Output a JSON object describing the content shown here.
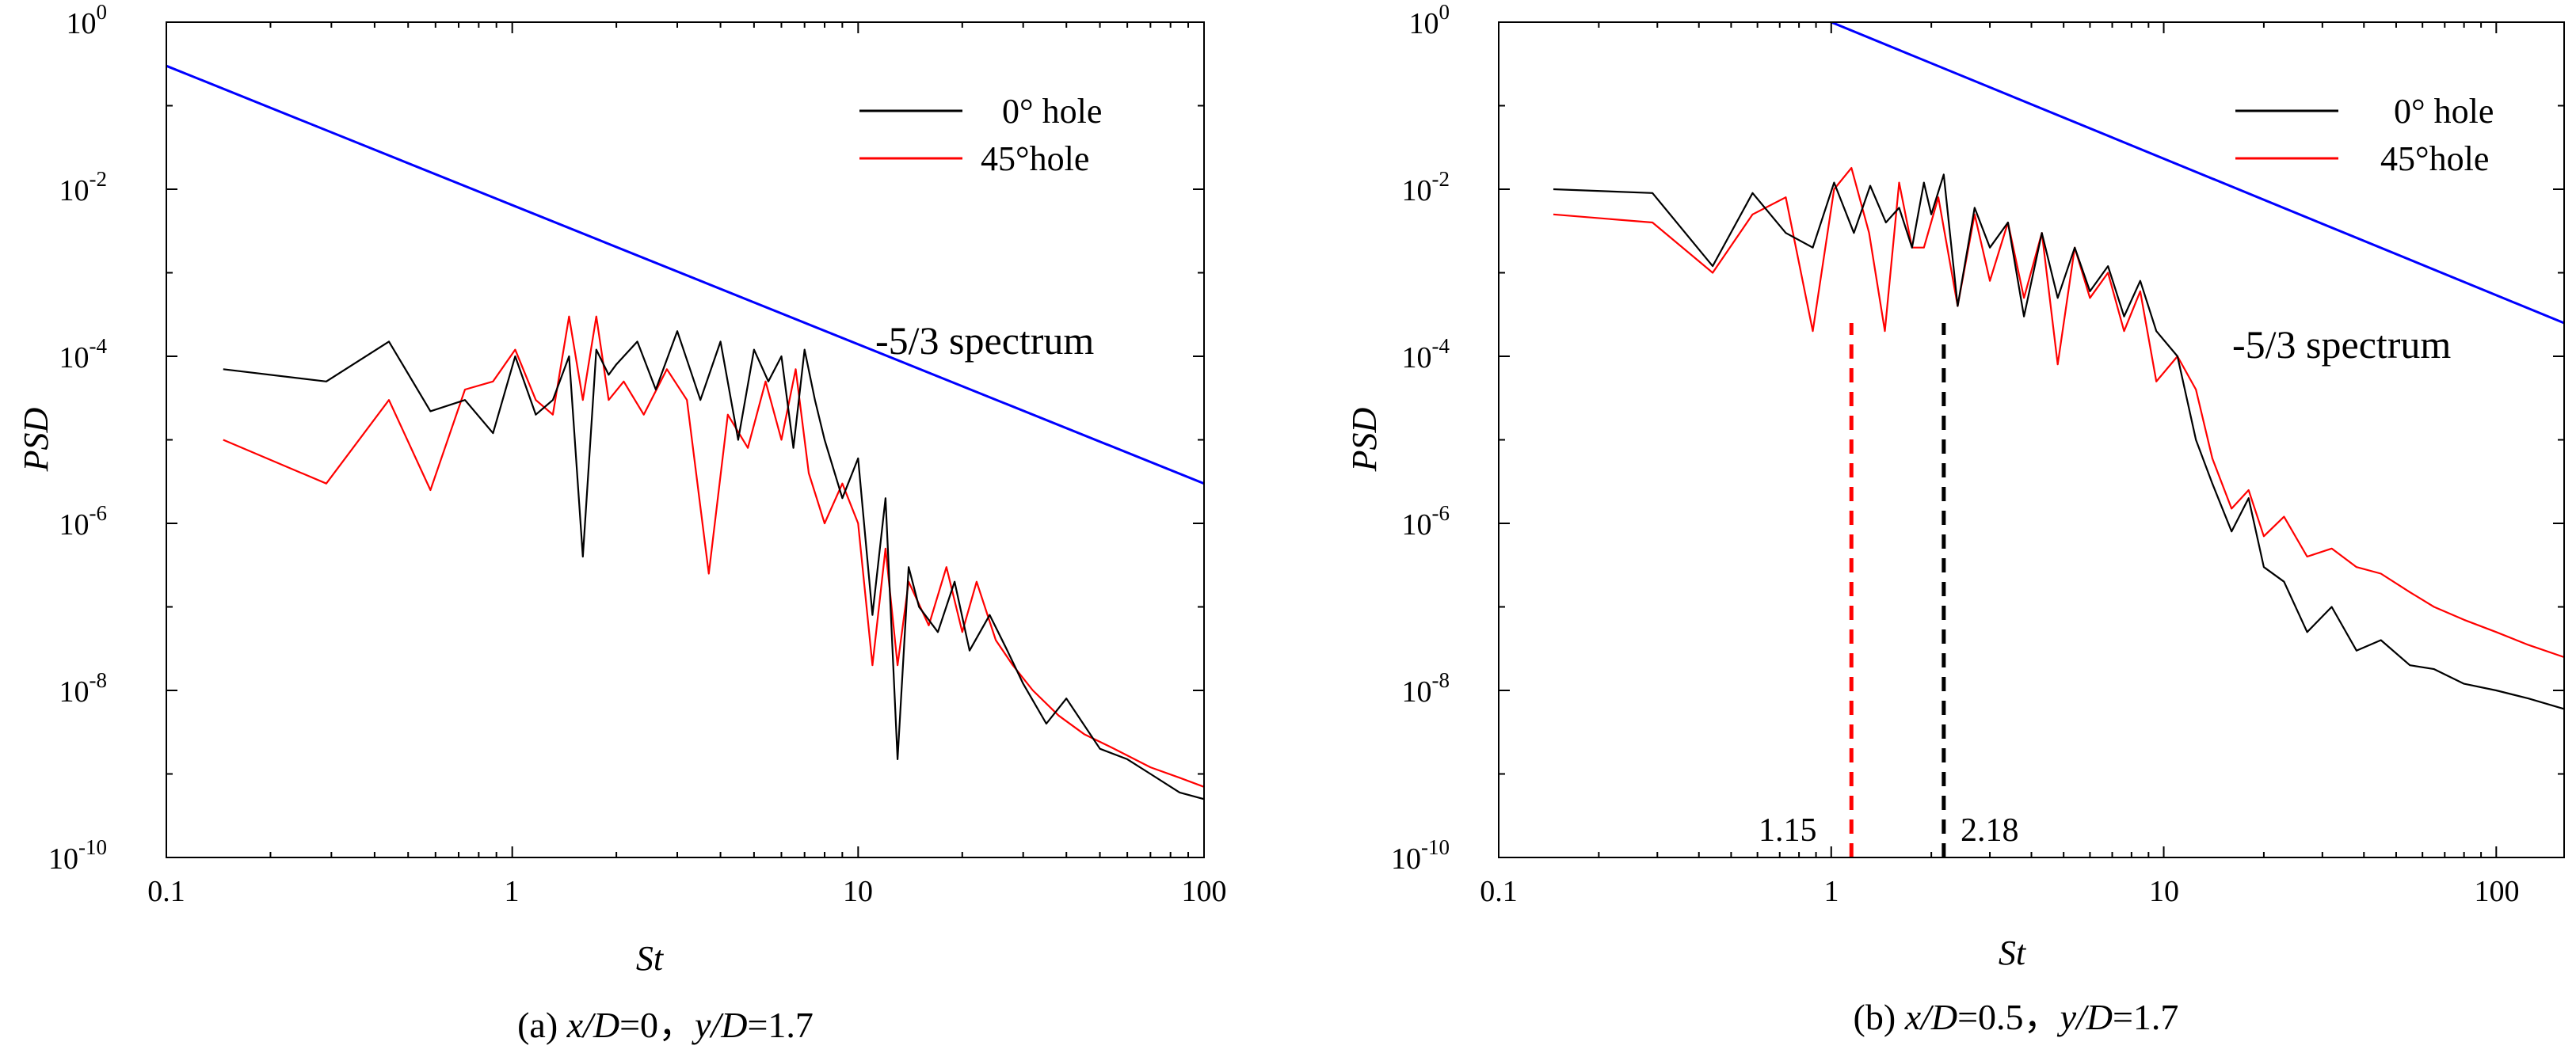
{
  "chart_data": [
    {
      "type": "line",
      "panel": "a",
      "caption": "(a) x/D=0，y/D=1.7",
      "caption_parts": [
        "(a) ",
        "x/D",
        "=0，",
        "y/D",
        "=1.7"
      ],
      "xlabel": "St",
      "ylabel": "PSD",
      "xscale": "log",
      "yscale": "log",
      "xlim": [
        0.1,
        100
      ],
      "ylim": [
        1e-10,
        1
      ],
      "x_ticks": [
        "0.1",
        "1",
        "10",
        "100"
      ],
      "y_ticks": [
        "10-10",
        "10-8",
        "10-6",
        "10-4",
        "10-2",
        "100"
      ],
      "y_tick_exponents": [
        "-10",
        "-8",
        "-6",
        "-4",
        "-2",
        "0"
      ],
      "legend_position": "top-right",
      "annotations": [
        {
          "text": "-5/3 spectrum",
          "x": 20,
          "y": 0.00018
        }
      ],
      "series": [
        {
          "name": "0° hole",
          "color": "#000000",
          "x": [
            0.146,
            0.29,
            0.44,
            0.58,
            0.73,
            0.88,
            1.02,
            1.17,
            1.31,
            1.46,
            1.6,
            1.75,
            1.9,
            2.0,
            2.3,
            2.6,
            3.0,
            3.5,
            4.0,
            4.5,
            5.0,
            5.5,
            6.0,
            6.5,
            7.0,
            7.5,
            8.0,
            9.0,
            10.0,
            11.0,
            12.0,
            13.0,
            14.0,
            15.0,
            17.0,
            19.0,
            21.0,
            24.0,
            27.0,
            30.0,
            35.0,
            40.0,
            50.0,
            60.0,
            70.0,
            85.0,
            100.0
          ],
          "y": [
            7e-05,
            5e-05,
            0.00015,
            2.2e-05,
            3e-05,
            1.2e-05,
            0.0001,
            2e-05,
            3e-05,
            0.0001,
            4e-07,
            0.00012,
            6e-05,
            8e-05,
            0.00015,
            4e-05,
            0.0002,
            3e-05,
            0.00015,
            1e-05,
            0.00012,
            5e-05,
            0.0001,
            8e-06,
            0.00012,
            3e-05,
            1e-05,
            2e-06,
            6e-06,
            8e-08,
            2e-06,
            1.5e-09,
            3e-07,
            1e-07,
            5e-08,
            2e-07,
            3e-08,
            8e-08,
            3e-08,
            1.2e-08,
            4e-09,
            8e-09,
            2e-09,
            1.5e-09,
            1e-09,
            6e-10,
            5e-10
          ]
        },
        {
          "name": "45°hole",
          "color": "#ff0000",
          "x": [
            0.146,
            0.29,
            0.44,
            0.58,
            0.73,
            0.88,
            1.02,
            1.17,
            1.31,
            1.46,
            1.6,
            1.75,
            1.9,
            2.1,
            2.4,
            2.8,
            3.2,
            3.7,
            4.2,
            4.8,
            5.4,
            6.0,
            6.6,
            7.2,
            8.0,
            9.0,
            10.0,
            11.0,
            12.0,
            13.0,
            14.0,
            16.0,
            18.0,
            20.0,
            22.0,
            25.0,
            28.0,
            32.0,
            38.0,
            45.0,
            55.0,
            70.0,
            85.0,
            100.0
          ],
          "y": [
            1e-05,
            3e-06,
            3e-05,
            2.5e-06,
            4e-05,
            5e-05,
            0.00012,
            3e-05,
            2e-05,
            0.0003,
            3e-05,
            0.0003,
            3e-05,
            5e-05,
            2e-05,
            7e-05,
            3e-05,
            2.5e-07,
            2e-05,
            8e-06,
            5e-05,
            1e-05,
            7e-05,
            4e-06,
            1e-06,
            3e-06,
            1e-06,
            2e-08,
            5e-07,
            2e-08,
            2e-07,
            6e-08,
            3e-07,
            5e-08,
            2e-07,
            4e-08,
            2e-08,
            1e-08,
            5e-09,
            3e-09,
            2e-09,
            1.2e-09,
            9e-10,
            7e-10
          ]
        },
        {
          "name": "-5/3 spectrum",
          "color": "#0000ff",
          "show_in_legend": false,
          "x": [
            0.1,
            100
          ],
          "y": [
            0.3,
            3e-06
          ]
        }
      ]
    },
    {
      "type": "line",
      "panel": "b",
      "caption": "(b) x/D=0.5，y/D=1.7",
      "caption_parts": [
        "(b) ",
        "x/D",
        "=0.5，",
        "y/D",
        "=1.7"
      ],
      "xlabel": "St",
      "ylabel": "PSD",
      "xscale": "log",
      "yscale": "log",
      "xlim": [
        0.1,
        160
      ],
      "ylim": [
        1e-10,
        1
      ],
      "x_ticks": [
        "0.1",
        "1",
        "10",
        "100"
      ],
      "y_ticks": [
        "10-10",
        "10-8",
        "10-6",
        "10-4",
        "10-2",
        "100"
      ],
      "y_tick_exponents": [
        "-10",
        "-8",
        "-6",
        "-4",
        "-2",
        "0"
      ],
      "legend_position": "top-right",
      "annotations": [
        {
          "text": "-5/3 spectrum",
          "x": 31,
          "y": 0.00018
        },
        {
          "text": "1.15",
          "x": 1.15,
          "color": "#ff0000",
          "type": "vline"
        },
        {
          "text": "2.18",
          "x": 2.18,
          "color": "#000000",
          "type": "vline"
        }
      ],
      "series": [
        {
          "name": "0° hole",
          "color": "#000000",
          "x": [
            0.146,
            0.29,
            0.44,
            0.58,
            0.73,
            0.88,
            1.02,
            1.17,
            1.31,
            1.46,
            1.6,
            1.75,
            1.9,
            2.0,
            2.18,
            2.4,
            2.7,
            3.0,
            3.4,
            3.8,
            4.3,
            4.8,
            5.4,
            6.0,
            6.8,
            7.6,
            8.5,
            9.5,
            11.0,
            12.5,
            14.0,
            16.0,
            18.0,
            20.0,
            23.0,
            27.0,
            32.0,
            38.0,
            45.0,
            55.0,
            65.0,
            80.0,
            100.0,
            125.0,
            160.0
          ],
          "y": [
            0.01,
            0.009,
            0.0012,
            0.009,
            0.003,
            0.002,
            0.012,
            0.003,
            0.011,
            0.004,
            0.006,
            0.002,
            0.012,
            0.005,
            0.015,
            0.0004,
            0.006,
            0.002,
            0.004,
            0.0003,
            0.003,
            0.0005,
            0.002,
            0.0006,
            0.0012,
            0.0003,
            0.0008,
            0.0002,
            0.0001,
            1e-05,
            3e-06,
            8e-07,
            2e-06,
            3e-07,
            2e-07,
            5e-08,
            1e-07,
            3e-08,
            4e-08,
            2e-08,
            1.8e-08,
            1.2e-08,
            1e-08,
            8e-09,
            6e-09
          ]
        },
        {
          "name": "45°hole",
          "color": "#ff0000",
          "x": [
            0.146,
            0.29,
            0.44,
            0.58,
            0.73,
            0.88,
            1.02,
            1.15,
            1.3,
            1.45,
            1.6,
            1.75,
            1.9,
            2.1,
            2.4,
            2.7,
            3.0,
            3.4,
            3.8,
            4.3,
            4.8,
            5.4,
            6.0,
            6.8,
            7.6,
            8.5,
            9.5,
            11.0,
            12.5,
            14.0,
            16.0,
            18.0,
            20.0,
            23.0,
            27.0,
            32.0,
            38.0,
            45.0,
            55.0,
            65.0,
            80.0,
            100.0,
            125.0,
            160.0
          ],
          "y": [
            0.005,
            0.004,
            0.001,
            0.005,
            0.008,
            0.0002,
            0.01,
            0.018,
            0.003,
            0.0002,
            0.012,
            0.002,
            0.002,
            0.008,
            0.0004,
            0.005,
            0.0008,
            0.004,
            0.0005,
            0.003,
            8e-05,
            0.002,
            0.0005,
            0.001,
            0.0002,
            0.0006,
            5e-05,
            0.0001,
            4e-05,
            6e-06,
            1.5e-06,
            2.5e-06,
            7e-07,
            1.2e-06,
            4e-07,
            5e-07,
            3e-07,
            2.5e-07,
            1.5e-07,
            1e-07,
            7e-08,
            5e-08,
            3.5e-08,
            2.5e-08
          ]
        },
        {
          "name": "-5/3 spectrum",
          "color": "#0000ff",
          "show_in_legend": false,
          "x": [
            1.0,
            160
          ],
          "y": [
            1.0,
            0.00025
          ]
        }
      ]
    }
  ]
}
